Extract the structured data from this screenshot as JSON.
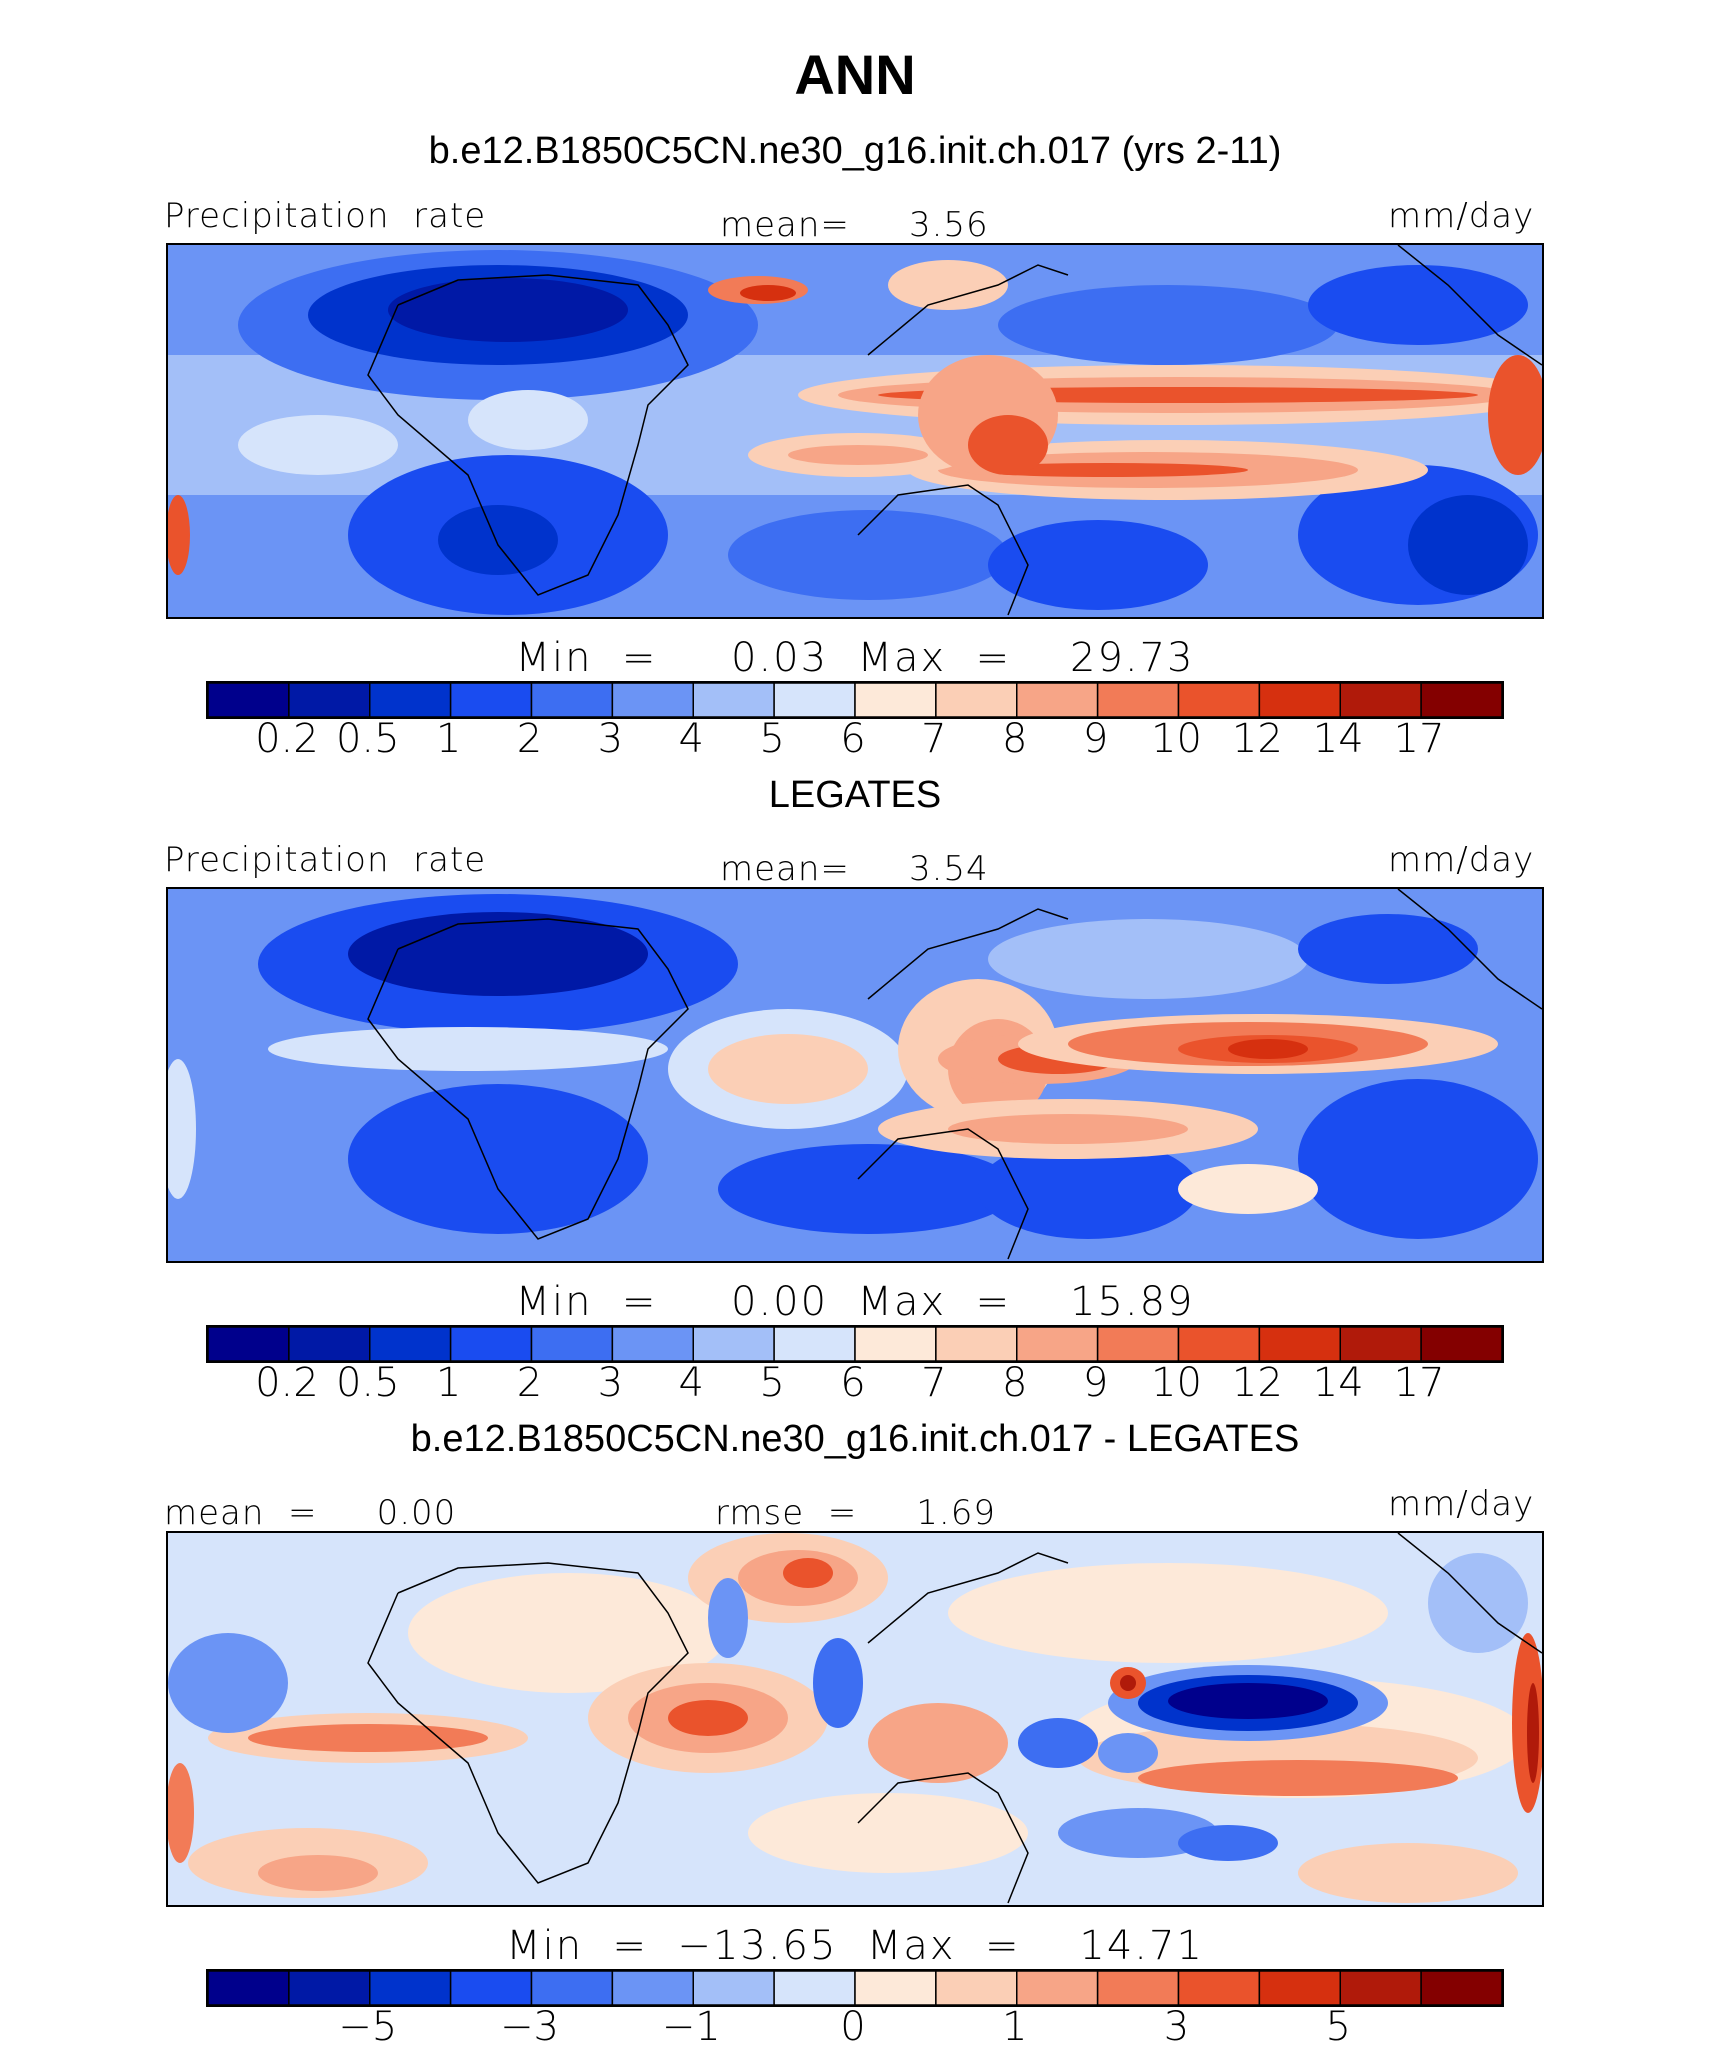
{
  "main_title": "ANN",
  "colors": [
    "#00008c",
    "#0019a6",
    "#0033cc",
    "#1a4cf0",
    "#3d6ef2",
    "#6b94f5",
    "#a3bff8",
    "#d6e4fb",
    "#fde9d9",
    "#fbcfb6",
    "#f7a587",
    "#f27b57",
    "#ea532c",
    "#d6300f",
    "#b01a0a",
    "#840000"
  ],
  "panels": [
    {
      "title": "b.e12.B1850C5CN.ne30_g16.init.ch.017 (yrs 2-11)",
      "left_label": "Precipitation  rate",
      "center_label": "mean=     3.56",
      "units": "mm/day",
      "min_max": "Min  =     0.03  Max  =    29.73",
      "ticks": [
        "0.2",
        "0.5",
        "1",
        "2",
        "3",
        "4",
        "5",
        "6",
        "7",
        "8",
        "9",
        "10",
        "12",
        "14",
        "17"
      ]
    },
    {
      "title": "LEGATES",
      "left_label": "Precipitation  rate",
      "center_label": "mean=     3.54",
      "units": "mm/day",
      "min_max": "Min  =     0.00  Max  =    15.89",
      "ticks": [
        "0.2",
        "0.5",
        "1",
        "2",
        "3",
        "4",
        "5",
        "6",
        "7",
        "8",
        "9",
        "10",
        "12",
        "14",
        "17"
      ]
    },
    {
      "title": "b.e12.B1850C5CN.ne30_g16.init.ch.017 - LEGATES",
      "left_label": "mean  =     0.00",
      "center_label": "rmse  =     1.69",
      "units": "mm/day",
      "min_max": "Min  =  −13.65  Max  =    14.71",
      "ticks": [
        "−5",
        "−3",
        "−1",
        "0",
        "1",
        "3",
        "5"
      ]
    }
  ],
  "chart_data": [
    {
      "type": "heatmap",
      "title": "b.e12.B1850C5CN.ne30_g16.init.ch.017 (yrs 2-11)",
      "variable": "Precipitation rate",
      "units": "mm/day",
      "mean": 3.56,
      "min": 0.03,
      "max": 29.73,
      "contour_levels": [
        0.2,
        0.5,
        1,
        2,
        3,
        4,
        5,
        6,
        7,
        8,
        9,
        10,
        12,
        14,
        17
      ]
    },
    {
      "type": "heatmap",
      "title": "LEGATES",
      "variable": "Precipitation rate",
      "units": "mm/day",
      "mean": 3.54,
      "min": 0.0,
      "max": 15.89,
      "contour_levels": [
        0.2,
        0.5,
        1,
        2,
        3,
        4,
        5,
        6,
        7,
        8,
        9,
        10,
        12,
        14,
        17
      ]
    },
    {
      "type": "heatmap",
      "title": "b.e12.B1850C5CN.ne30_g16.init.ch.017 - LEGATES",
      "units": "mm/day",
      "mean": 0.0,
      "rmse": 1.69,
      "min": -13.65,
      "max": 14.71,
      "contour_tick_labels": [
        -5,
        -3,
        -1,
        0,
        1,
        3,
        5
      ]
    }
  ]
}
